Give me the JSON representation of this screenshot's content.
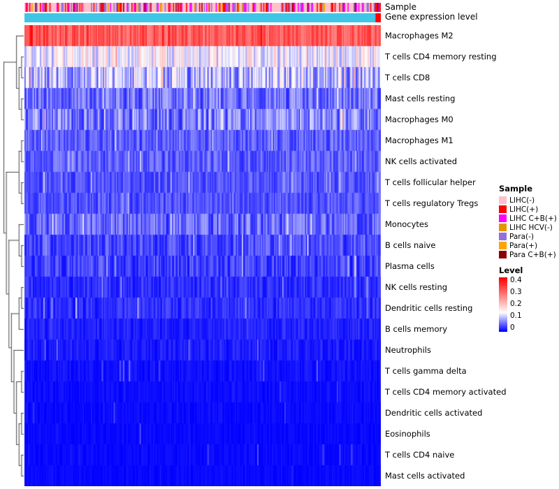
{
  "annotations": {
    "sample_label": "Sample",
    "gene_label": "Gene expression level",
    "gene_bar": {
      "segments": [
        {
          "color": "#3FC6E6",
          "frac": 0.985
        },
        {
          "color": "#FF0000",
          "frac": 0.015
        }
      ]
    }
  },
  "chart_data": {
    "type": "heatmap",
    "title": "",
    "xlabel": "",
    "ylabel": "",
    "n_samples": 300,
    "value_range": [
      0,
      0.4
    ],
    "grid": false,
    "legend_position": "right",
    "colormap": {
      "low": "#0000FF",
      "mid": "#FFFFFF",
      "high": "#FF0000",
      "mid_point": 0.35
    },
    "rows": [
      {
        "label": "Macrophages M2",
        "mean": 0.31,
        "noise": 0.05,
        "spike_prob": 0.06,
        "spike_amp": 0.08
      },
      {
        "label": "T cells CD4 memory resting",
        "mean": 0.14,
        "noise": 0.06,
        "spike_prob": 0.05,
        "spike_amp": 0.1
      },
      {
        "label": "T cells CD8",
        "mean": 0.1,
        "noise": 0.07,
        "spike_prob": 0.05,
        "spike_amp": 0.12
      },
      {
        "label": "Mast cells resting",
        "mean": 0.06,
        "noise": 0.04,
        "spike_prob": 0.04,
        "spike_amp": 0.1
      },
      {
        "label": "Macrophages M0",
        "mean": 0.07,
        "noise": 0.05,
        "spike_prob": 0.05,
        "spike_amp": 0.12
      },
      {
        "label": "Macrophages M1",
        "mean": 0.05,
        "noise": 0.03,
        "spike_prob": 0.04,
        "spike_amp": 0.1
      },
      {
        "label": "NK cells activated",
        "mean": 0.05,
        "noise": 0.03,
        "spike_prob": 0.04,
        "spike_amp": 0.08
      },
      {
        "label": "T cells follicular helper",
        "mean": 0.045,
        "noise": 0.025,
        "spike_prob": 0.04,
        "spike_amp": 0.08
      },
      {
        "label": "T cells regulatory Tregs",
        "mean": 0.045,
        "noise": 0.025,
        "spike_prob": 0.04,
        "spike_amp": 0.08
      },
      {
        "label": "Monocytes",
        "mean": 0.055,
        "noise": 0.04,
        "spike_prob": 0.05,
        "spike_amp": 0.12
      },
      {
        "label": "B cells naive",
        "mean": 0.04,
        "noise": 0.03,
        "spike_prob": 0.04,
        "spike_amp": 0.1
      },
      {
        "label": "Plasma cells",
        "mean": 0.035,
        "noise": 0.03,
        "spike_prob": 0.04,
        "spike_amp": 0.1
      },
      {
        "label": "NK cells resting",
        "mean": 0.025,
        "noise": 0.02,
        "spike_prob": 0.03,
        "spike_amp": 0.08
      },
      {
        "label": "Dendritic cells resting",
        "mean": 0.025,
        "noise": 0.02,
        "spike_prob": 0.03,
        "spike_amp": 0.08
      },
      {
        "label": "B cells memory",
        "mean": 0.018,
        "noise": 0.015,
        "spike_prob": 0.03,
        "spike_amp": 0.06
      },
      {
        "label": "Neutrophils",
        "mean": 0.015,
        "noise": 0.015,
        "spike_prob": 0.03,
        "spike_amp": 0.06
      },
      {
        "label": "T cells gamma delta",
        "mean": 0.008,
        "noise": 0.01,
        "spike_prob": 0.02,
        "spike_amp": 0.06
      },
      {
        "label": "T cells CD4 memory activated",
        "mean": 0.006,
        "noise": 0.008,
        "spike_prob": 0.02,
        "spike_amp": 0.05
      },
      {
        "label": "Dendritic cells activated",
        "mean": 0.005,
        "noise": 0.008,
        "spike_prob": 0.02,
        "spike_amp": 0.05
      },
      {
        "label": "Eosinophils",
        "mean": 0.004,
        "noise": 0.006,
        "spike_prob": 0.015,
        "spike_amp": 0.05
      },
      {
        "label": "T cells CD4 naive",
        "mean": 0.004,
        "noise": 0.008,
        "spike_prob": 0.02,
        "spike_amp": 0.06
      },
      {
        "label": "Mast cells activated",
        "mean": 0.004,
        "noise": 0.006,
        "spike_prob": 0.015,
        "spike_amp": 0.05
      }
    ],
    "dendrogram": [
      [
        0,
        [
          [
            1,
            2
          ],
          [
            3,
            4
          ]
        ]
      ],
      [
        [
          [
            5,
            6
          ],
          [
            7,
            8
          ]
        ],
        [
          [
            9,
            [
              10,
              11
            ]
          ],
          [
            [
              [
                12,
                13
              ],
              14
            ],
            [
              15,
              [
                [
                  16,
                  17
                ],
                [
                  [
                    18,
                    19
                  ],
                  [
                    20,
                    21
                  ]
                ]
              ]
            ]
          ]
        ]
      ]
    ],
    "legend_sample": {
      "title": "Sample",
      "entries": [
        {
          "label": "LIHC(-)",
          "color": "#FFC0CB",
          "weight": 0.5
        },
        {
          "label": "LIHC(+)",
          "color": "#FF0000",
          "weight": 0.2
        },
        {
          "label": "LIHC C+B(+)",
          "color": "#FF00FF",
          "weight": 0.12
        },
        {
          "label": "LIHC HCV(-)",
          "color": "#E69500",
          "weight": 0.02
        },
        {
          "label": "Para(-)",
          "color": "#9370DB",
          "weight": 0.1
        },
        {
          "label": "Para(+)",
          "color": "#FFA500",
          "weight": 0.02
        },
        {
          "label": "Para C+B(+)",
          "color": "#8B0000",
          "weight": 0.02
        }
      ]
    },
    "legend_level": {
      "title": "Level",
      "ticks": [
        "0.4",
        "0.3",
        "0.2",
        "0.1",
        "0"
      ]
    }
  }
}
